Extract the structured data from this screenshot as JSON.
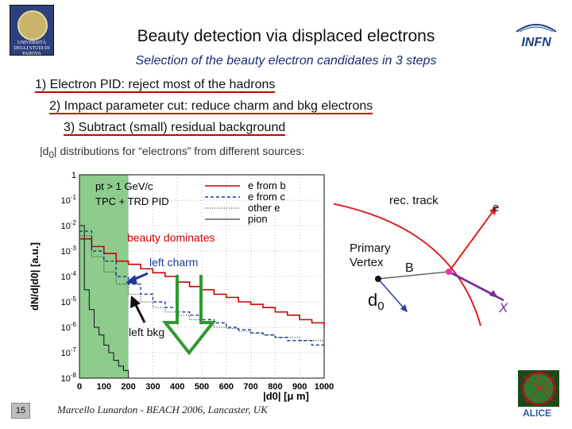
{
  "header": {
    "title": "Beauty detection via displaced electrons",
    "subtitle": "Selection of the beauty electron candidates in 3 steps",
    "logo_left_text": "UNIVERSITÀ DEGLI STUDI DI PADOVA",
    "logo_right_text": "INFN"
  },
  "steps": [
    "1) Electron PID: reject most of the hadrons",
    "2) Impact parameter cut: reduce charm and bkg electrons",
    "3) Subtract (small) residual background"
  ],
  "distributions": {
    "prefix": "|d",
    "sub": "0",
    "suffix": "| distributions for “electrons”  from different sources:"
  },
  "plot": {
    "ylabel": "dN/d|d0| [a.u.]",
    "xlabel": "|d0| [μ m]",
    "cuts": [
      "pt > 1 GeV/c",
      "TPC + TRD  PID"
    ],
    "legend": [
      "e from b",
      "e from c",
      "other e",
      "pion"
    ],
    "annotations": {
      "beauty": "beauty dominates",
      "charm": "left charm",
      "bkg": "left bkg"
    },
    "colors": {
      "beauty": "#cc0000",
      "charm": "#1a3a9a",
      "other": "#111111",
      "pion": "#111111",
      "shade": "#66bb66",
      "arrow": "#2e9a2e"
    }
  },
  "chart_data": {
    "type": "line",
    "xlabel": "|d0| [μ m]",
    "ylabel": "dN/d|d0| [a.u.]",
    "log_y": true,
    "xlim": [
      0,
      1000
    ],
    "ylim": [
      1e-08,
      1
    ],
    "x_ticks": [
      0,
      100,
      200,
      300,
      400,
      500,
      600,
      700,
      800,
      900,
      1000
    ],
    "y_ticks": [
      "1",
      "10^-1",
      "10^-2",
      "10^-3",
      "10^-4",
      "10^-5",
      "10^-6",
      "10^-7",
      "10^-8"
    ],
    "legend_position": "top-right",
    "series": [
      {
        "name": "e from b",
        "x": [
          0,
          50,
          100,
          150,
          200,
          250,
          300,
          350,
          400,
          450,
          500,
          550,
          600,
          650,
          700,
          750,
          800,
          850,
          900,
          950,
          1000
        ],
        "y": [
          0.003,
          0.0015,
          0.0008,
          0.0004,
          0.0003,
          0.0002,
          0.00014,
          0.0001,
          6e-05,
          4e-05,
          3e-05,
          2e-05,
          1.5e-05,
          1e-05,
          8e-06,
          6e-06,
          4e-06,
          3e-06,
          2e-06,
          1.5e-06,
          1e-06
        ]
      },
      {
        "name": "e from c",
        "x": [
          0,
          50,
          100,
          150,
          200,
          250,
          300,
          350,
          400,
          450,
          500,
          550,
          600,
          650,
          700,
          750,
          800,
          850,
          900,
          950,
          1000
        ],
        "y": [
          0.006,
          0.001,
          0.0004,
          0.0001,
          5e-05,
          2e-05,
          1e-05,
          6e-06,
          4e-06,
          3e-06,
          2e-06,
          1.5e-06,
          1e-06,
          8e-07,
          6e-07,
          5e-07,
          4e-07,
          3e-07,
          3e-07,
          2e-07,
          2e-07
        ]
      },
      {
        "name": "other e",
        "x": [
          0,
          50,
          100,
          150,
          200,
          250,
          300,
          350,
          400,
          450,
          500,
          550,
          600,
          650,
          700,
          750,
          800,
          850,
          900,
          950,
          1000
        ],
        "y": [
          0.004,
          0.0006,
          0.00015,
          5e-05,
          2e-05,
          1e-05,
          6e-06,
          4e-06,
          3e-06,
          2e-06,
          1.5e-06,
          1e-06,
          9e-07,
          7e-07,
          6e-07,
          5e-07,
          4e-07,
          4e-07,
          3e-07,
          3e-07,
          3e-07
        ]
      },
      {
        "name": "pion",
        "x": [
          0,
          20,
          40,
          60,
          80,
          100,
          120,
          140,
          160,
          180,
          200,
          220
        ],
        "y": [
          0.01,
          3e-05,
          5e-06,
          1e-06,
          5e-07,
          2e-07,
          1e-07,
          5e-08,
          3e-08,
          2e-08,
          1e-08,
          1e-08
        ]
      }
    ]
  },
  "diagram": {
    "rec_track": "rec. track",
    "e": "e",
    "primary_vertex_1": "Primary",
    "primary_vertex_2": "Vertex",
    "B": "B",
    "d0_main": "d",
    "d0_sub": "0",
    "X": "X"
  },
  "footer": {
    "page_number": "15",
    "citation": "Marcello Lunardon - BEACH 2006, Lancaster, UK"
  }
}
